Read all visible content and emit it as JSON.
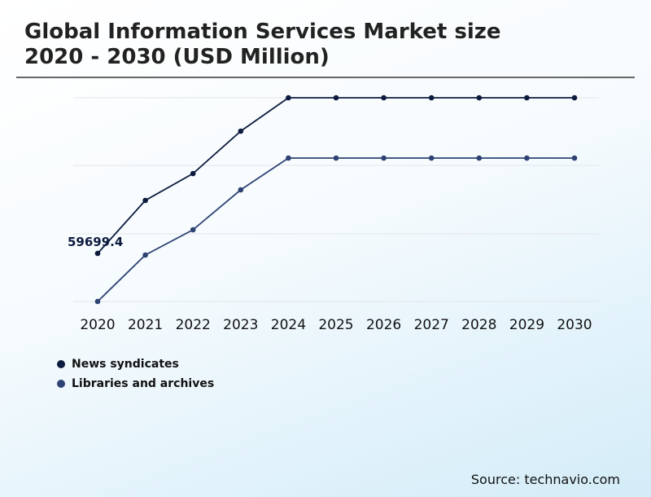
{
  "title_line1": "Global Information Services Market size",
  "title_line2": "2020 - 2030 (USD Million)",
  "source": "Source: technavio.com",
  "chart_data": {
    "type": "line",
    "title": "Global Information Services Market size 2020 - 2030 (USD Million)",
    "categories": [
      "2020",
      "2021",
      "2022",
      "2023",
      "2024",
      "2025",
      "2026",
      "2027",
      "2028",
      "2029",
      "2030"
    ],
    "series": [
      {
        "name": "News syndicates",
        "color": "#0d1b3e",
        "values": [
          59699.4,
          124700,
          157700,
          209700,
          250700,
          250700,
          250700,
          250700,
          250700,
          250700,
          250700
        ]
      },
      {
        "name": "Libraries and archives",
        "color": "#2e4374",
        "values": [
          700,
          57700,
          88700,
          137700,
          176700,
          176700,
          176700,
          176700,
          176700,
          176700,
          176700
        ]
      }
    ],
    "data_labels": [
      {
        "series": "News syndicates",
        "category": "2020",
        "text": "59699.4"
      }
    ],
    "ylim": [
      700,
      250700
    ],
    "y_axis_labels_shown": false,
    "grid": true,
    "legend_position": "bottom-left"
  }
}
